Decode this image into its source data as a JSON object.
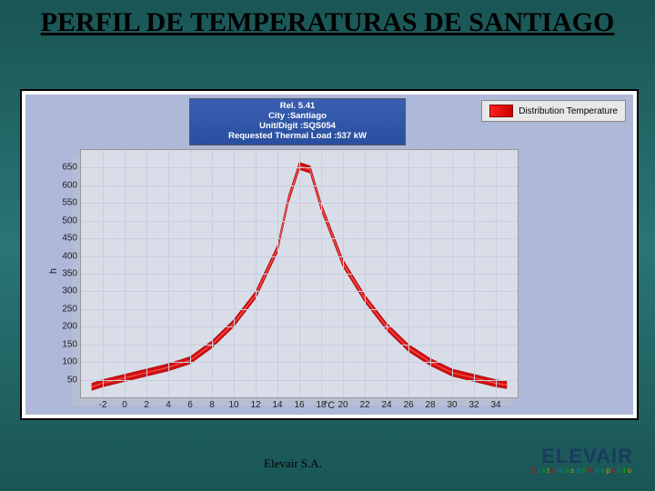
{
  "title": {
    "text": "PERFIL DE TEMPERATURAS DE SANTIAGO",
    "fontsize": 30,
    "color": "#000000"
  },
  "header_box": {
    "lines": [
      "Rel. 5.41",
      "City :Santiago",
      "Unit/Digit :SQS054",
      "Requested Thermal Load :537 kW"
    ],
    "bg_gradient": [
      "#3a5fb0",
      "#2a4f9f"
    ],
    "text_color": "#ffffff"
  },
  "legend": {
    "label": "Distribution Temperature",
    "swatch_colors": [
      "#ff2020",
      "#cc0000"
    ]
  },
  "chart": {
    "type": "line-ribbon",
    "background": "#aeb8d8",
    "plot_bg": "#d8dde8",
    "grid_color": "#c8cde0",
    "ylabel": "h",
    "xlabel": "°C",
    "ylim": [
      0,
      700
    ],
    "ytick_step": 50,
    "yticks": [
      50,
      100,
      150,
      200,
      250,
      300,
      350,
      400,
      450,
      500,
      550,
      600,
      650
    ],
    "xlim": [
      -4,
      36
    ],
    "xtick_step": 2,
    "xticks": [
      -2,
      0,
      2,
      4,
      6,
      8,
      10,
      12,
      14,
      16,
      18,
      20,
      22,
      24,
      26,
      28,
      30,
      32,
      34
    ],
    "line_color": "#d01010",
    "line_width": 8,
    "x": [
      -3,
      -2,
      0,
      2,
      4,
      6,
      8,
      10,
      12,
      14,
      15,
      16,
      17,
      18,
      20,
      22,
      24,
      26,
      28,
      30,
      32,
      34,
      35
    ],
    "y": [
      30,
      40,
      55,
      70,
      85,
      105,
      150,
      210,
      290,
      420,
      560,
      655,
      645,
      540,
      380,
      280,
      200,
      140,
      100,
      70,
      55,
      40,
      35
    ]
  },
  "footer": "Elevair S.A.",
  "brand": {
    "name": "ELEVAIR",
    "tagline": "Sistemas de Respaldo",
    "name_color": "#1a3a5f"
  }
}
